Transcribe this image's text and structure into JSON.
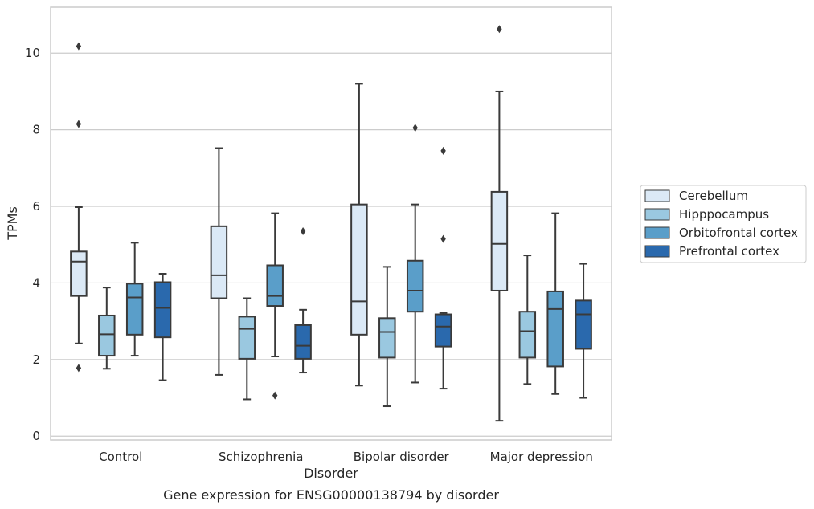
{
  "chart_data": {
    "type": "boxplot",
    "title": "",
    "caption": "Gene expression for ENSG00000138794 by disorder",
    "xlabel": "Disorder",
    "ylabel": "TPMs",
    "ylim": [
      -0.1,
      11.2
    ],
    "yticks": [
      0,
      2,
      4,
      6,
      8,
      10
    ],
    "grid": true,
    "legend_position": "right",
    "categories": [
      "Control",
      "Schizophrenia",
      "Bipolar disorder",
      "Major depression"
    ],
    "series": [
      {
        "name": "Cerebellum",
        "color": "#dbe9f6",
        "boxes": [
          {
            "whislo": 2.42,
            "q1": 3.66,
            "med": 4.56,
            "q3": 4.82,
            "whishi": 5.98,
            "fliers": [
              1.78,
              8.15,
              10.18
            ]
          },
          {
            "whislo": 1.6,
            "q1": 3.6,
            "med": 4.2,
            "q3": 5.48,
            "whishi": 7.52,
            "fliers": []
          },
          {
            "whislo": 1.32,
            "q1": 2.65,
            "med": 3.52,
            "q3": 6.05,
            "whishi": 9.2,
            "fliers": []
          },
          {
            "whislo": 0.4,
            "q1": 3.8,
            "med": 5.02,
            "q3": 6.38,
            "whishi": 9.0,
            "fliers": [
              10.63
            ]
          }
        ]
      },
      {
        "name": "Hipppocampus",
        "color": "#9ac8e0",
        "boxes": [
          {
            "whislo": 1.76,
            "q1": 2.1,
            "med": 2.66,
            "q3": 3.15,
            "whishi": 3.88,
            "fliers": []
          },
          {
            "whislo": 0.96,
            "q1": 2.02,
            "med": 2.8,
            "q3": 3.12,
            "whishi": 3.6,
            "fliers": []
          },
          {
            "whislo": 0.78,
            "q1": 2.05,
            "med": 2.72,
            "q3": 3.08,
            "whishi": 4.42,
            "fliers": []
          },
          {
            "whislo": 1.36,
            "q1": 2.05,
            "med": 2.74,
            "q3": 3.25,
            "whishi": 4.72,
            "fliers": []
          }
        ]
      },
      {
        "name": "Orbitofrontal cortex",
        "color": "#5a9ec9",
        "boxes": [
          {
            "whislo": 2.1,
            "q1": 2.65,
            "med": 3.62,
            "q3": 3.98,
            "whishi": 5.05,
            "fliers": []
          },
          {
            "whislo": 2.08,
            "q1": 3.4,
            "med": 3.66,
            "q3": 4.46,
            "whishi": 5.82,
            "fliers": [
              1.06
            ]
          },
          {
            "whislo": 1.4,
            "q1": 3.25,
            "med": 3.8,
            "q3": 4.58,
            "whishi": 6.05,
            "fliers": [
              8.05
            ]
          },
          {
            "whislo": 1.1,
            "q1": 1.82,
            "med": 3.32,
            "q3": 3.78,
            "whishi": 5.82,
            "fliers": []
          }
        ]
      },
      {
        "name": "Prefrontal cortex",
        "color": "#2a69ad",
        "boxes": [
          {
            "whislo": 1.46,
            "q1": 2.58,
            "med": 3.35,
            "q3": 4.02,
            "whishi": 4.24,
            "fliers": []
          },
          {
            "whislo": 1.66,
            "q1": 2.02,
            "med": 2.36,
            "q3": 2.9,
            "whishi": 3.3,
            "fliers": [
              5.35
            ]
          },
          {
            "whislo": 1.24,
            "q1": 2.34,
            "med": 2.86,
            "q3": 3.18,
            "whishi": 3.22,
            "fliers": [
              5.15,
              7.45
            ]
          },
          {
            "whislo": 1.0,
            "q1": 2.28,
            "med": 3.18,
            "q3": 3.54,
            "whishi": 4.5,
            "fliers": []
          }
        ]
      }
    ]
  }
}
